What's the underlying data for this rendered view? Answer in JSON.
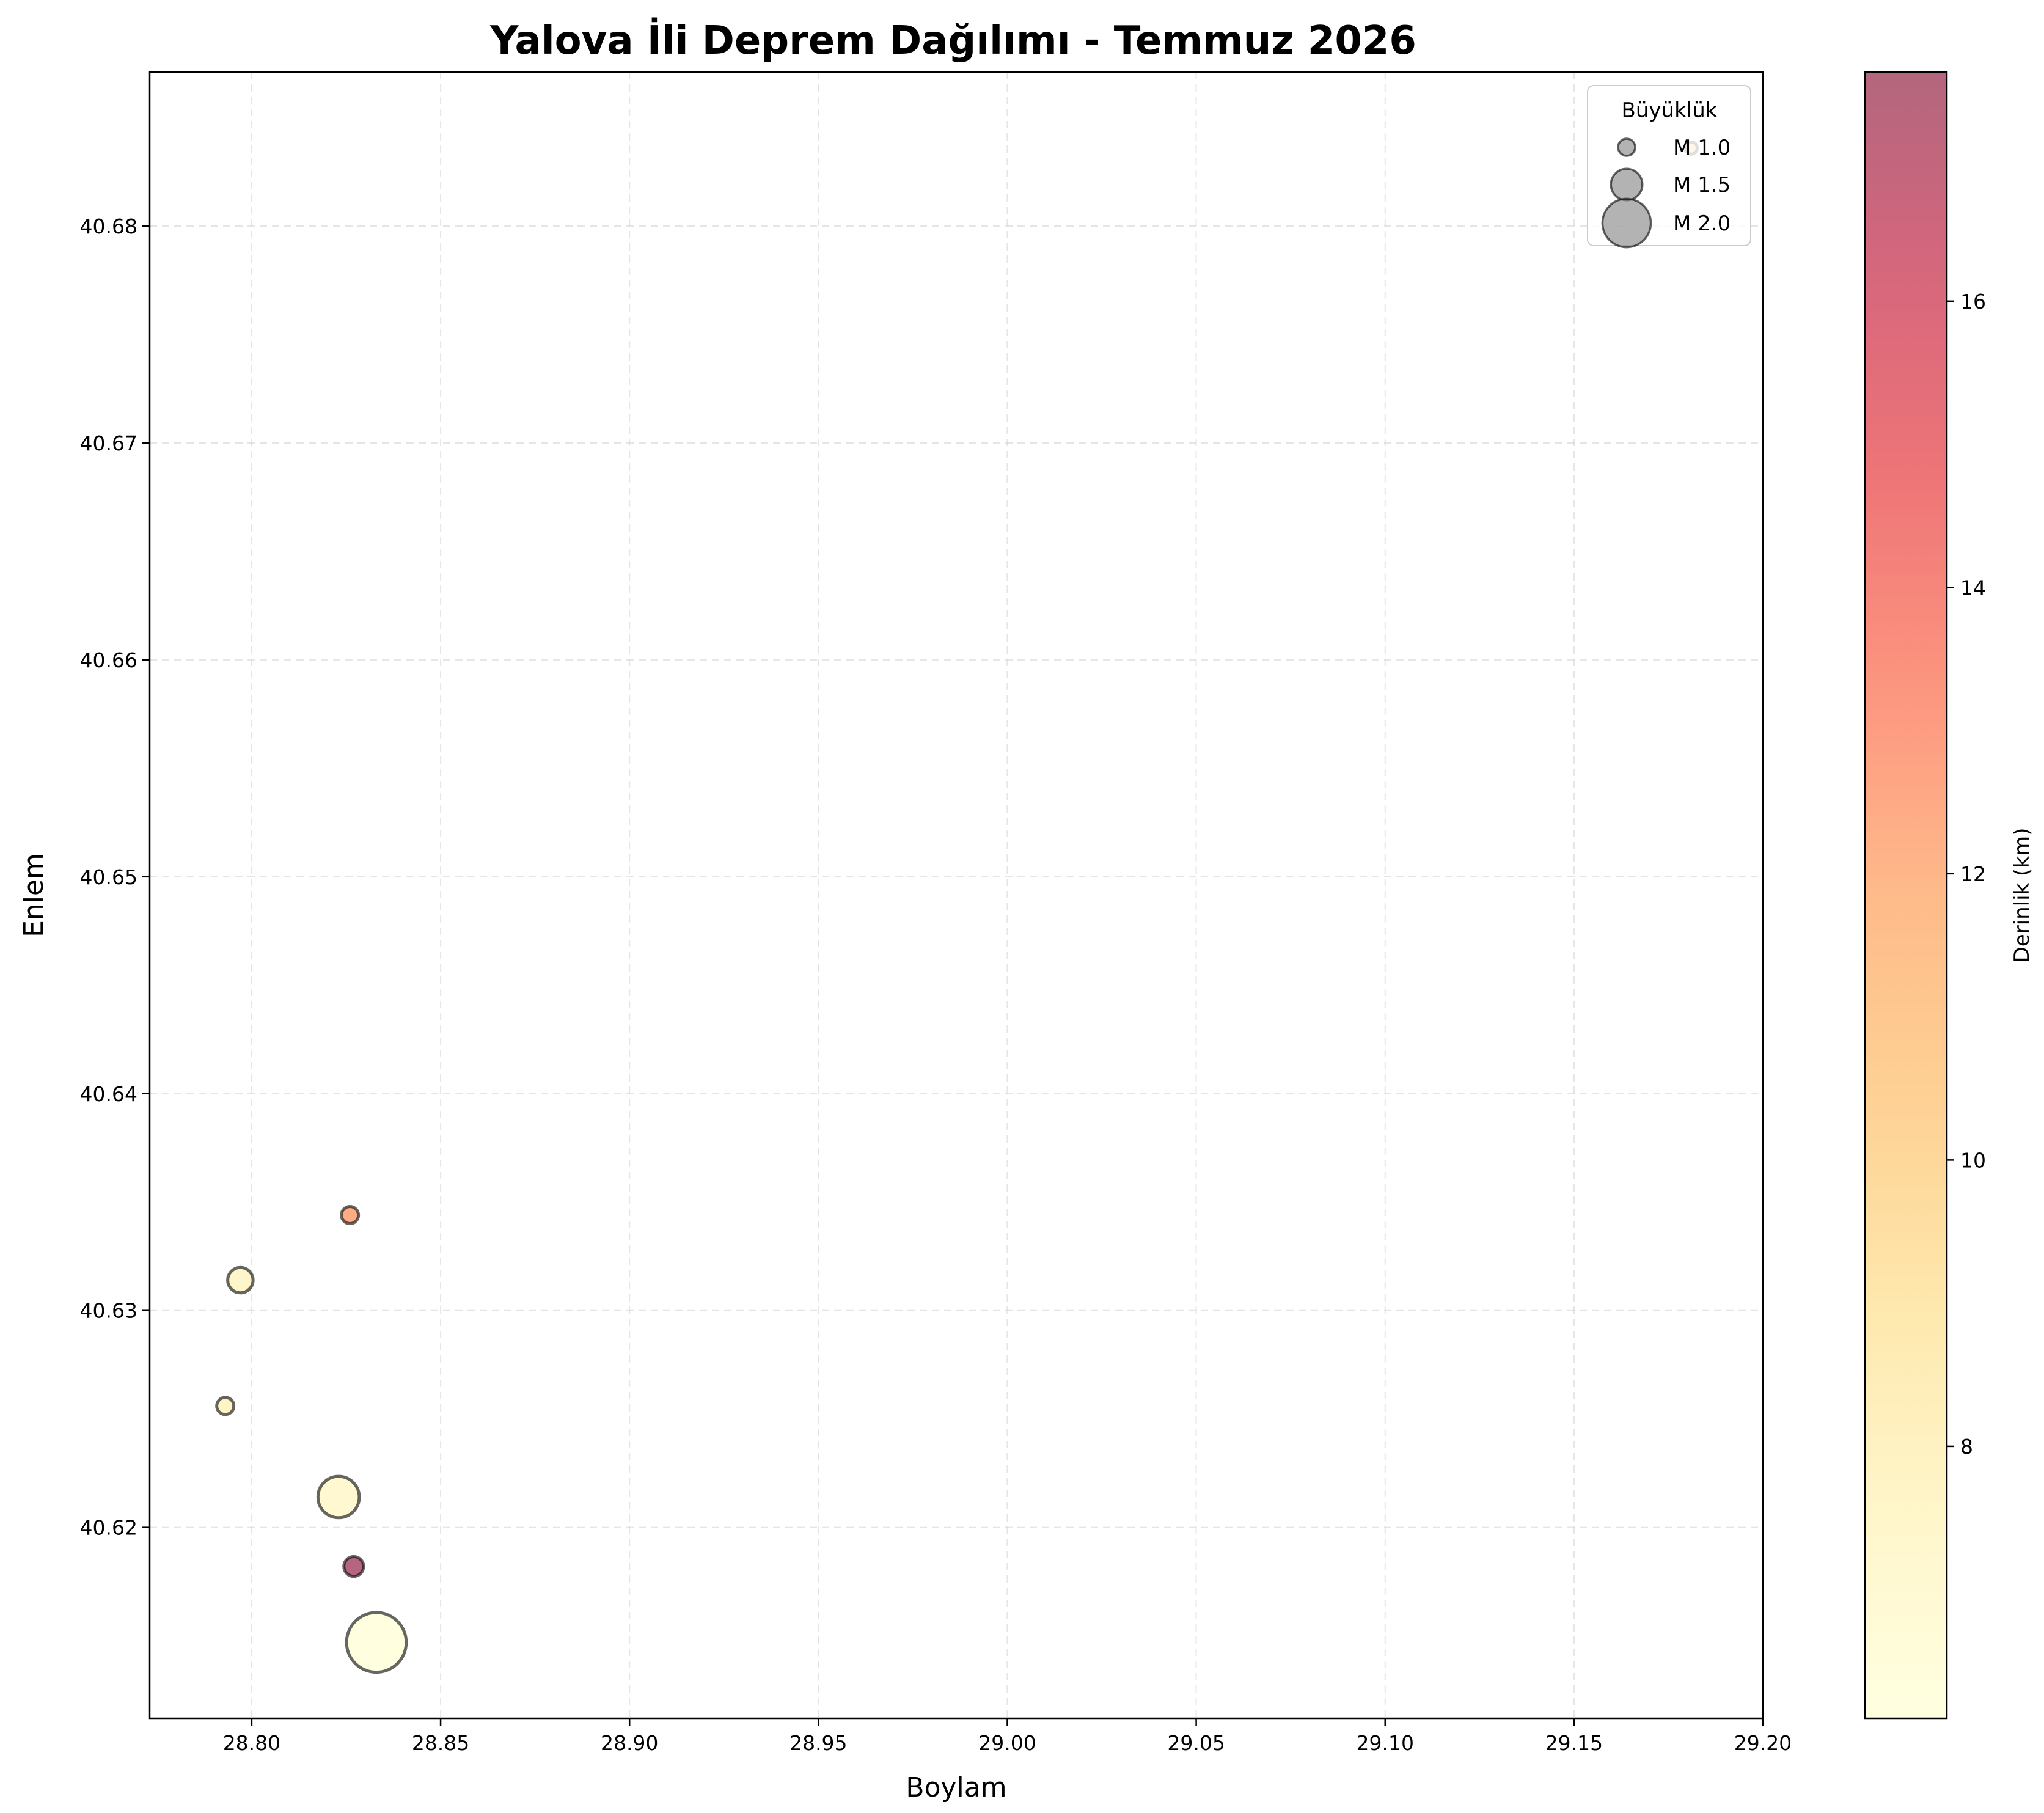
{
  "chart_data": {
    "type": "scatter",
    "title": "Yalova İli Deprem Dağılımı - Temmuz 2026",
    "xlabel": "Boylam",
    "ylabel": "Enlem",
    "xlim": [
      28.773,
      29.2
    ],
    "ylim": [
      40.6112,
      40.6871
    ],
    "xticks": [
      28.8,
      28.85,
      28.9,
      28.95,
      29.0,
      29.05,
      29.1,
      29.15,
      29.2
    ],
    "xtick_labels": [
      "28.80",
      "28.85",
      "28.90",
      "28.95",
      "29.00",
      "29.05",
      "29.10",
      "29.15",
      "29.20"
    ],
    "yticks": [
      40.62,
      40.63,
      40.64,
      40.65,
      40.66,
      40.67,
      40.68
    ],
    "ytick_labels": [
      "40.62",
      "40.63",
      "40.64",
      "40.65",
      "40.66",
      "40.67",
      "40.68"
    ],
    "grid": true,
    "points": [
      {
        "x": 29.181,
        "y": 40.6836,
        "magnitude": 0.8,
        "depth": 10.2
      },
      {
        "x": 28.826,
        "y": 40.6344,
        "magnitude": 1.0,
        "depth": 12.4
      },
      {
        "x": 28.797,
        "y": 40.6314,
        "magnitude": 1.3,
        "depth": 7.6
      },
      {
        "x": 28.793,
        "y": 40.6256,
        "magnitude": 1.0,
        "depth": 7.8
      },
      {
        "x": 28.823,
        "y": 40.6214,
        "magnitude": 1.8,
        "depth": 7.2
      },
      {
        "x": 28.827,
        "y": 40.6182,
        "magnitude": 1.1,
        "depth": 17.6
      },
      {
        "x": 28.833,
        "y": 40.6147,
        "magnitude": 2.3,
        "depth": 6.1
      }
    ],
    "size_legend": {
      "title": "Büyüklük",
      "placement": "top-right",
      "items": [
        {
          "label": "M 1.0",
          "magnitude": 1.0
        },
        {
          "label": "M 1.5",
          "magnitude": 1.5
        },
        {
          "label": "M 2.0",
          "magnitude": 2.0
        }
      ]
    },
    "colorbar": {
      "label": "Derinlik (km)",
      "range": [
        6.1,
        17.6
      ],
      "ticks": [
        8,
        10,
        12,
        14,
        16
      ],
      "colormap_stops": [
        "#ffffcc",
        "#fff0a8",
        "#fed976",
        "#feb24c",
        "#fd8d3c",
        "#fc4e2a",
        "#e31a1c",
        "#bd0026",
        "#800026"
      ],
      "alpha": 0.6
    },
    "colors": {
      "edge": "#000000",
      "grid": "#d3d3d3",
      "legend_marker": "#808080"
    }
  }
}
